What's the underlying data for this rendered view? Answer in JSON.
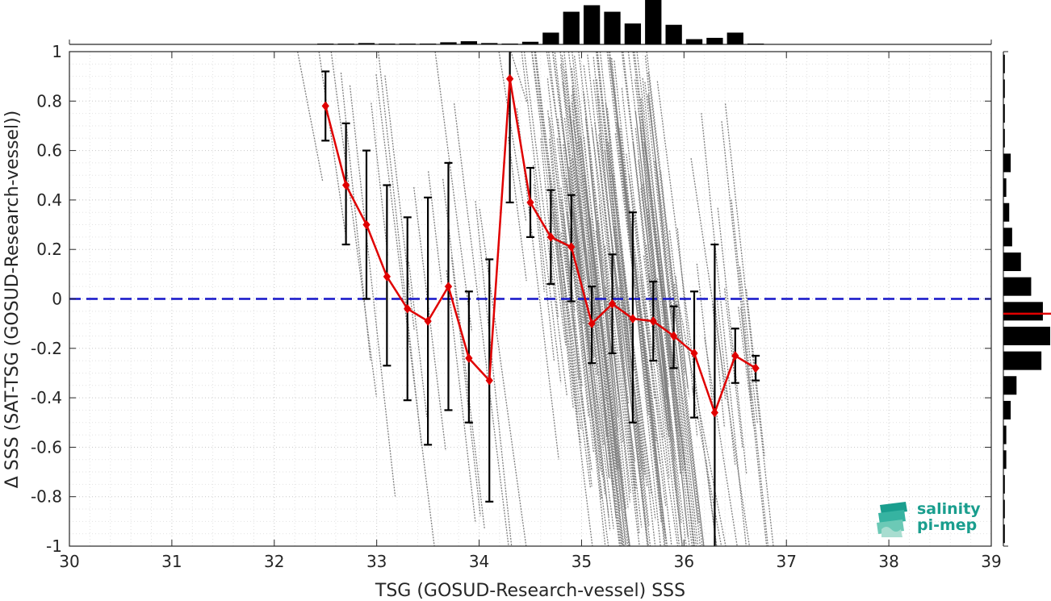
{
  "chart_data": {
    "type": "scatter",
    "xlabel": "TSG (GOSUD-Research-vessel) SSS",
    "ylabel": "Δ SSS (SAT-TSG (GOSUD-Research-vessel))",
    "xlim": [
      30,
      39
    ],
    "ylim": [
      -1,
      1
    ],
    "xticks": [
      "30",
      "31",
      "32",
      "33",
      "34",
      "35",
      "36",
      "37",
      "38",
      "39"
    ],
    "yticks": [
      "-1",
      "-0.8",
      "-0.6",
      "-0.4",
      "-0.2",
      "0",
      "0.2",
      "0.4",
      "0.6",
      "0.8",
      "1"
    ],
    "grid": true,
    "zero_line": {
      "y": 0,
      "style": "dashed",
      "color": "#1414c8"
    },
    "binned_mean": {
      "color": "#e00000",
      "x": [
        32.5,
        32.7,
        32.9,
        33.1,
        33.3,
        33.5,
        33.7,
        33.9,
        34.1,
        34.3,
        34.5,
        34.7,
        34.9,
        35.1,
        35.3,
        35.5,
        35.7,
        35.9,
        36.1,
        36.3,
        36.5,
        36.7
      ],
      "y": [
        0.78,
        0.46,
        0.3,
        0.09,
        -0.04,
        -0.09,
        0.05,
        -0.24,
        -0.33,
        0.89,
        0.39,
        0.25,
        0.21,
        -0.1,
        -0.02,
        -0.08,
        -0.09,
        -0.15,
        -0.22,
        -0.46,
        -0.23,
        -0.28
      ],
      "err_low": [
        0.64,
        0.22,
        0.0,
        -0.27,
        -0.41,
        -0.59,
        -0.45,
        -0.5,
        -0.82,
        0.39,
        0.25,
        0.06,
        -0.01,
        -0.26,
        -0.22,
        -0.5,
        -0.25,
        -0.28,
        -0.48,
        -1.0,
        -0.34,
        -0.33
      ],
      "err_high": [
        0.92,
        0.71,
        0.6,
        0.46,
        0.33,
        0.41,
        0.55,
        0.03,
        0.16,
        1.0,
        0.53,
        0.44,
        0.42,
        0.05,
        0.18,
        0.35,
        0.07,
        -0.03,
        0.03,
        0.22,
        -0.12,
        -0.23
      ]
    },
    "scatter_color": "#7f7f7f",
    "x_histogram": {
      "bin_centers": [
        32.5,
        32.7,
        32.9,
        33.1,
        33.3,
        33.5,
        33.7,
        33.9,
        34.1,
        34.3,
        34.5,
        34.7,
        34.9,
        35.1,
        35.3,
        35.5,
        35.7,
        35.9,
        36.1,
        36.3,
        36.5,
        36.7
      ],
      "counts": [
        0.3,
        0.3,
        0.5,
        0.3,
        0.3,
        0.3,
        0.8,
        1.2,
        0.5,
        0.3,
        1.0,
        4.5,
        12.5,
        15,
        12.5,
        8.0,
        17,
        7.5,
        2.0,
        2.5,
        4.5,
        0.3
      ]
    },
    "y_histogram": {
      "bin_centers": [
        0.95,
        0.85,
        0.75,
        0.65,
        0.55,
        0.45,
        0.35,
        0.25,
        0.15,
        0.05,
        -0.05,
        -0.15,
        -0.25,
        -0.35,
        -0.45,
        -0.55,
        -0.65,
        -0.75,
        -0.85,
        -0.95
      ],
      "counts": [
        0.5,
        0.5,
        0.5,
        0.5,
        2.5,
        1.0,
        2.0,
        3.0,
        6.0,
        9.5,
        13.5,
        16,
        13,
        4.5,
        2.5,
        1.0,
        1.0,
        0.5,
        0.5,
        0.5
      ],
      "mean_marker": -0.06,
      "mean_color": "#e00000"
    }
  },
  "logo": {
    "line1": "salinity",
    "line2": "pi-mep",
    "color": "#1a9e8e"
  }
}
